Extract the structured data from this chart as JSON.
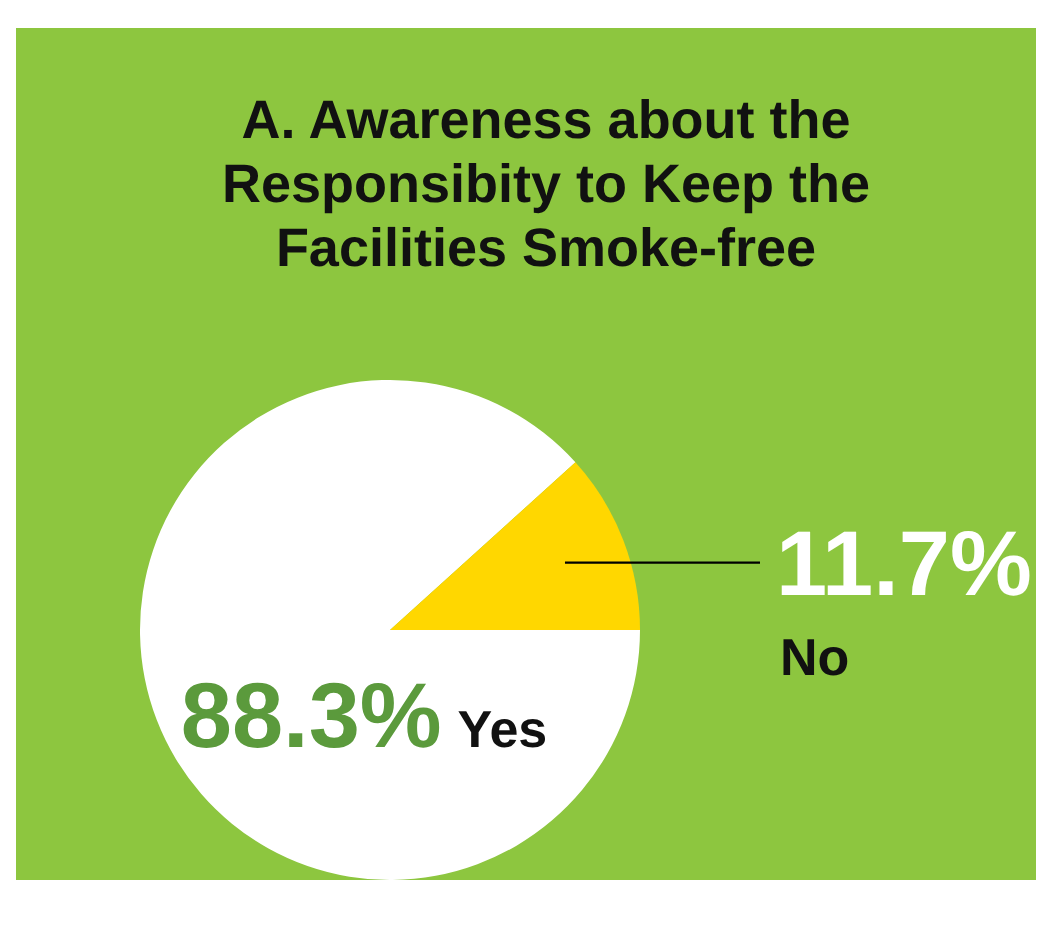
{
  "chart_data": {
    "type": "pie",
    "title": "A. Awareness about the Responsibity to Keep the Facilities Smoke-free",
    "categories": [
      "Yes",
      "No"
    ],
    "values": [
      88.3,
      11.7
    ],
    "colors": [
      "#ffffff",
      "#ffd700"
    ],
    "value_labels": [
      "88.3%",
      "11.7%"
    ],
    "legend": false
  }
}
